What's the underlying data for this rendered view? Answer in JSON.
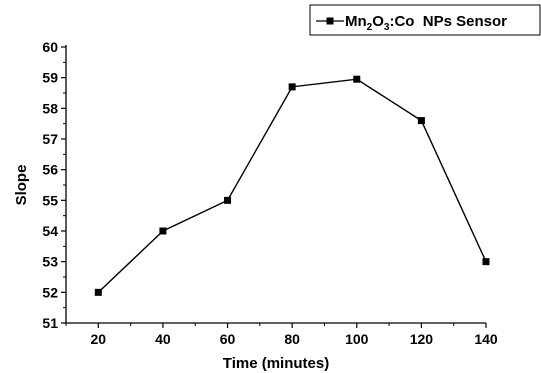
{
  "chart_data": {
    "type": "line",
    "xlabel": "Time (minutes)",
    "ylabel": "Slope",
    "x": [
      20,
      40,
      60,
      80,
      100,
      120,
      140
    ],
    "xlim": [
      10,
      140
    ],
    "ylim": [
      51,
      60
    ],
    "xticks": [
      "20",
      "40",
      "60",
      "80",
      "100",
      "120",
      "140"
    ],
    "yticks": [
      "51",
      "52",
      "53",
      "54",
      "55",
      "56",
      "57",
      "58",
      "59",
      "60"
    ],
    "series": [
      {
        "name": "Mn2O3:Co  NPs Sensor",
        "legend": {
          "main": "Mn",
          "sub1": "2",
          "mid": "O",
          "sub2": "3",
          "tail": ":Co  NPs Sensor"
        },
        "values": [
          52.0,
          54.0,
          55.0,
          58.7,
          58.95,
          57.6,
          53.0
        ],
        "color": "#000000",
        "marker": "square"
      }
    ],
    "grid": false,
    "legend_position": "top-right"
  }
}
